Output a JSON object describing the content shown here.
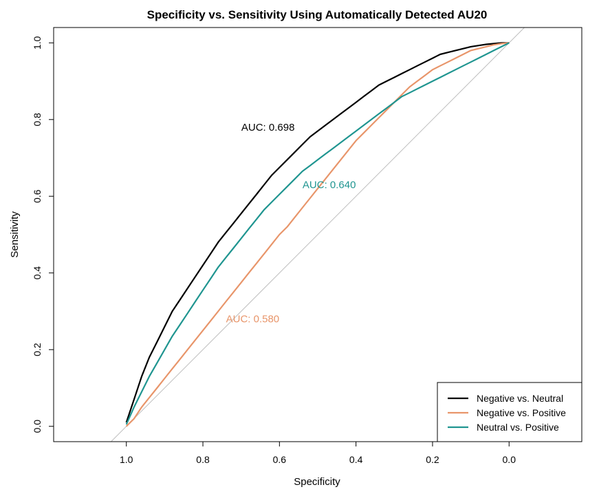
{
  "chart_data": {
    "type": "line",
    "title": "Specificity vs. Sensitivity Using Automatically Detected AU20",
    "xlabel": "Specificity",
    "ylabel": "Sensitivity",
    "xlim": [
      1.19,
      -0.19
    ],
    "ylim": [
      -0.04,
      1.04
    ],
    "x_reversed": true,
    "x_ticks": [
      "1.0",
      "0.8",
      "0.6",
      "0.4",
      "0.2",
      "0.0"
    ],
    "x_tick_values": [
      1.0,
      0.8,
      0.6,
      0.4,
      0.2,
      0.0
    ],
    "y_ticks": [
      "0.0",
      "0.2",
      "0.4",
      "0.6",
      "0.8",
      "1.0"
    ],
    "y_tick_values": [
      0.0,
      0.2,
      0.4,
      0.6,
      0.8,
      1.0
    ],
    "grid": false,
    "legend_position": "bottom-right",
    "reference_line": {
      "from": [
        1.0,
        0.0
      ],
      "to": [
        0.0,
        1.0
      ],
      "color": "#bebebe"
    },
    "series": [
      {
        "name": "Negative vs. Neutral",
        "color": "#000000",
        "auc_label": "AUC: 0.698",
        "label_at": [
          0.63,
          0.78
        ],
        "specificity": [
          1.0,
          0.98,
          0.96,
          0.94,
          0.92,
          0.9,
          0.88,
          0.86,
          0.84,
          0.82,
          0.8,
          0.78,
          0.76,
          0.74,
          0.72,
          0.7,
          0.68,
          0.66,
          0.64,
          0.62,
          0.6,
          0.58,
          0.56,
          0.54,
          0.52,
          0.5,
          0.48,
          0.46,
          0.44,
          0.42,
          0.4,
          0.38,
          0.36,
          0.34,
          0.32,
          0.3,
          0.28,
          0.26,
          0.24,
          0.22,
          0.2,
          0.18,
          0.16,
          0.14,
          0.12,
          0.1,
          0.08,
          0.06,
          0.04,
          0.02,
          0.0
        ],
        "sensitivity": [
          0.01,
          0.07,
          0.13,
          0.18,
          0.22,
          0.26,
          0.3,
          0.33,
          0.36,
          0.39,
          0.42,
          0.45,
          0.48,
          0.505,
          0.53,
          0.555,
          0.58,
          0.605,
          0.63,
          0.655,
          0.675,
          0.695,
          0.715,
          0.735,
          0.755,
          0.77,
          0.785,
          0.8,
          0.815,
          0.83,
          0.845,
          0.86,
          0.875,
          0.89,
          0.9,
          0.91,
          0.92,
          0.93,
          0.94,
          0.95,
          0.96,
          0.97,
          0.975,
          0.98,
          0.985,
          0.99,
          0.993,
          0.996,
          0.998,
          1.0,
          1.0
        ]
      },
      {
        "name": "Negative vs. Positive",
        "color": "#e8956a",
        "auc_label": "AUC: 0.580",
        "label_at": [
          0.67,
          0.28
        ],
        "specificity": [
          1.0,
          0.98,
          0.96,
          0.94,
          0.92,
          0.9,
          0.88,
          0.86,
          0.84,
          0.82,
          0.8,
          0.78,
          0.76,
          0.74,
          0.72,
          0.7,
          0.68,
          0.66,
          0.64,
          0.62,
          0.6,
          0.58,
          0.56,
          0.54,
          0.52,
          0.5,
          0.48,
          0.46,
          0.44,
          0.42,
          0.4,
          0.38,
          0.36,
          0.34,
          0.32,
          0.3,
          0.28,
          0.26,
          0.24,
          0.22,
          0.2,
          0.18,
          0.16,
          0.14,
          0.12,
          0.1,
          0.08,
          0.06,
          0.04,
          0.02,
          0.0
        ],
        "sensitivity": [
          0.0,
          0.02,
          0.05,
          0.075,
          0.1,
          0.125,
          0.15,
          0.175,
          0.2,
          0.225,
          0.25,
          0.275,
          0.3,
          0.325,
          0.35,
          0.375,
          0.4,
          0.425,
          0.45,
          0.475,
          0.5,
          0.52,
          0.545,
          0.57,
          0.595,
          0.62,
          0.645,
          0.67,
          0.695,
          0.72,
          0.745,
          0.765,
          0.785,
          0.805,
          0.825,
          0.845,
          0.865,
          0.885,
          0.9,
          0.915,
          0.93,
          0.94,
          0.95,
          0.96,
          0.97,
          0.98,
          0.985,
          0.99,
          0.995,
          0.998,
          1.0
        ]
      },
      {
        "name": "Neutral vs. Positive",
        "color": "#1f9590",
        "auc_label": "AUC: 0.640",
        "label_at": [
          0.47,
          0.63
        ],
        "specificity": [
          1.0,
          0.98,
          0.96,
          0.94,
          0.92,
          0.9,
          0.88,
          0.86,
          0.84,
          0.82,
          0.8,
          0.78,
          0.76,
          0.74,
          0.72,
          0.7,
          0.68,
          0.66,
          0.64,
          0.62,
          0.6,
          0.58,
          0.56,
          0.54,
          0.52,
          0.5,
          0.48,
          0.46,
          0.44,
          0.42,
          0.4,
          0.38,
          0.36,
          0.34,
          0.32,
          0.3,
          0.28,
          0.26,
          0.24,
          0.22,
          0.2,
          0.18,
          0.16,
          0.14,
          0.12,
          0.1,
          0.08,
          0.06,
          0.04,
          0.02,
          0.0
        ],
        "sensitivity": [
          0.005,
          0.05,
          0.09,
          0.13,
          0.165,
          0.2,
          0.235,
          0.265,
          0.295,
          0.325,
          0.355,
          0.385,
          0.415,
          0.44,
          0.465,
          0.49,
          0.515,
          0.54,
          0.565,
          0.585,
          0.605,
          0.625,
          0.645,
          0.665,
          0.68,
          0.695,
          0.71,
          0.725,
          0.74,
          0.755,
          0.77,
          0.785,
          0.8,
          0.815,
          0.83,
          0.845,
          0.86,
          0.87,
          0.88,
          0.89,
          0.9,
          0.91,
          0.92,
          0.93,
          0.94,
          0.95,
          0.96,
          0.97,
          0.98,
          0.99,
          1.0
        ]
      }
    ]
  }
}
